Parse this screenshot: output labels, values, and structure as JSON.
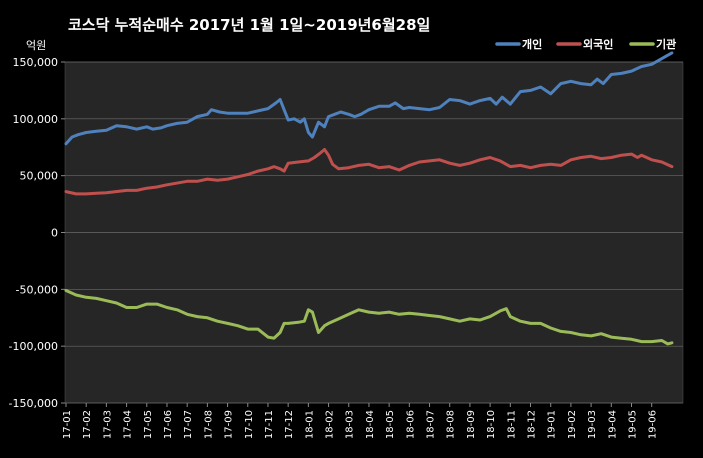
{
  "chart_data": {
    "type": "line",
    "title": "코스닥  누적순매수 2017년 1월 1일~2019년6월28일",
    "ylabel": "억원",
    "xlabel": "",
    "ylim": [
      -150000,
      150000
    ],
    "yticks": [
      150000,
      100000,
      50000,
      0,
      -50000,
      -100000,
      -150000
    ],
    "ytick_labels": [
      "150,000",
      "100,000",
      "50,000",
      "0",
      "-50,000",
      "-100,000",
      "-150,000"
    ],
    "categories": [
      "17-01",
      "17-02",
      "17-03",
      "17-04",
      "17-05",
      "17-06",
      "17-07",
      "17-08",
      "17-09",
      "17-10",
      "17-11",
      "17-12",
      "18-01",
      "18-02",
      "18-03",
      "18-04",
      "18-05",
      "18-06",
      "18-07",
      "18-08",
      "18-09",
      "18-10",
      "18-11",
      "18-12",
      "19-01",
      "19-02",
      "19-03",
      "19-04",
      "19-05",
      "19-06"
    ],
    "grid": "horizontal",
    "legend_position": "top-right",
    "series": [
      {
        "name": "개인",
        "color": "#4f81bd",
        "points": [
          [
            0,
            78000
          ],
          [
            0.3,
            84000
          ],
          [
            0.6,
            86000
          ],
          [
            1,
            88000
          ],
          [
            1.5,
            89000
          ],
          [
            2,
            90000
          ],
          [
            2.5,
            94000
          ],
          [
            3,
            93000
          ],
          [
            3.5,
            91000
          ],
          [
            4,
            93000
          ],
          [
            4.3,
            91000
          ],
          [
            4.7,
            92000
          ],
          [
            5,
            94000
          ],
          [
            5.5,
            96000
          ],
          [
            6,
            97000
          ],
          [
            6.5,
            102000
          ],
          [
            7,
            104000
          ],
          [
            7.2,
            108000
          ],
          [
            7.6,
            106000
          ],
          [
            8,
            105000
          ],
          [
            8.5,
            105000
          ],
          [
            9,
            105000
          ],
          [
            9.5,
            107000
          ],
          [
            10,
            109000
          ],
          [
            10.4,
            114000
          ],
          [
            10.6,
            117000
          ],
          [
            10.8,
            108000
          ],
          [
            11,
            99000
          ],
          [
            11.3,
            100000
          ],
          [
            11.6,
            97000
          ],
          [
            11.8,
            100000
          ],
          [
            12,
            88000
          ],
          [
            12.2,
            84000
          ],
          [
            12.5,
            97000
          ],
          [
            12.8,
            93000
          ],
          [
            13,
            102000
          ],
          [
            13.3,
            104000
          ],
          [
            13.6,
            106000
          ],
          [
            14,
            104000
          ],
          [
            14.3,
            102000
          ],
          [
            14.6,
            104000
          ],
          [
            15,
            108000
          ],
          [
            15.5,
            111000
          ],
          [
            16,
            111000
          ],
          [
            16.3,
            114000
          ],
          [
            16.7,
            109000
          ],
          [
            17,
            110000
          ],
          [
            17.5,
            109000
          ],
          [
            18,
            108000
          ],
          [
            18.5,
            110000
          ],
          [
            19,
            117000
          ],
          [
            19.5,
            116000
          ],
          [
            20,
            113000
          ],
          [
            20.5,
            116000
          ],
          [
            21,
            118000
          ],
          [
            21.3,
            113000
          ],
          [
            21.6,
            119000
          ],
          [
            22,
            113000
          ],
          [
            22.5,
            124000
          ],
          [
            23,
            125000
          ],
          [
            23.5,
            128000
          ],
          [
            24,
            122000
          ],
          [
            24.5,
            131000
          ],
          [
            25,
            133000
          ],
          [
            25.5,
            131000
          ],
          [
            26,
            130000
          ],
          [
            26.3,
            135000
          ],
          [
            26.6,
            131000
          ],
          [
            27,
            139000
          ],
          [
            27.5,
            140000
          ],
          [
            28,
            142000
          ],
          [
            28.5,
            146000
          ],
          [
            29,
            148000
          ],
          [
            29.3,
            151000
          ],
          [
            29.7,
            155000
          ],
          [
            30,
            158000
          ]
        ]
      },
      {
        "name": "외국인",
        "color": "#c0504d",
        "points": [
          [
            0,
            36000
          ],
          [
            0.5,
            34000
          ],
          [
            1,
            34000
          ],
          [
            1.5,
            34500
          ],
          [
            2,
            35000
          ],
          [
            3,
            37000
          ],
          [
            3.5,
            37000
          ],
          [
            4,
            39000
          ],
          [
            4.5,
            40000
          ],
          [
            5,
            42000
          ],
          [
            6,
            45000
          ],
          [
            6.5,
            45000
          ],
          [
            7,
            47000
          ],
          [
            7.5,
            46000
          ],
          [
            8,
            47000
          ],
          [
            8.5,
            49000
          ],
          [
            9,
            51000
          ],
          [
            9.5,
            54000
          ],
          [
            10,
            56000
          ],
          [
            10.3,
            58000
          ],
          [
            10.6,
            56000
          ],
          [
            10.8,
            54000
          ],
          [
            11,
            61000
          ],
          [
            11.5,
            62000
          ],
          [
            12,
            63000
          ],
          [
            12.3,
            66000
          ],
          [
            12.6,
            70000
          ],
          [
            12.8,
            73000
          ],
          [
            13,
            68000
          ],
          [
            13.2,
            60000
          ],
          [
            13.5,
            56000
          ],
          [
            14,
            57000
          ],
          [
            14.5,
            59000
          ],
          [
            15,
            60000
          ],
          [
            15.5,
            57000
          ],
          [
            16,
            58000
          ],
          [
            16.5,
            55000
          ],
          [
            17,
            59000
          ],
          [
            17.5,
            62000
          ],
          [
            18,
            63000
          ],
          [
            18.5,
            64000
          ],
          [
            19,
            61000
          ],
          [
            19.5,
            59000
          ],
          [
            20,
            61000
          ],
          [
            20.5,
            64000
          ],
          [
            21,
            66000
          ],
          [
            21.5,
            63000
          ],
          [
            22,
            58000
          ],
          [
            22.5,
            59000
          ],
          [
            23,
            57000
          ],
          [
            23.5,
            59000
          ],
          [
            24,
            60000
          ],
          [
            24.5,
            59000
          ],
          [
            25,
            64000
          ],
          [
            25.5,
            66000
          ],
          [
            26,
            67000
          ],
          [
            26.5,
            65000
          ],
          [
            27,
            66000
          ],
          [
            27.5,
            68000
          ],
          [
            28,
            69000
          ],
          [
            28.3,
            66000
          ],
          [
            28.5,
            68000
          ],
          [
            29,
            64000
          ],
          [
            29.5,
            62000
          ],
          [
            30,
            58000
          ]
        ]
      },
      {
        "name": "기관",
        "color": "#9bbb59",
        "points": [
          [
            0,
            -51000
          ],
          [
            0.5,
            -55000
          ],
          [
            1,
            -57000
          ],
          [
            1.5,
            -58000
          ],
          [
            2,
            -60000
          ],
          [
            2.5,
            -62000
          ],
          [
            3,
            -66000
          ],
          [
            3.5,
            -66000
          ],
          [
            4,
            -63000
          ],
          [
            4.5,
            -63000
          ],
          [
            5,
            -66000
          ],
          [
            5.5,
            -68000
          ],
          [
            6,
            -72000
          ],
          [
            6.5,
            -74000
          ],
          [
            7,
            -75000
          ],
          [
            7.5,
            -78000
          ],
          [
            8,
            -80000
          ],
          [
            8.5,
            -82000
          ],
          [
            9,
            -85000
          ],
          [
            9.5,
            -85000
          ],
          [
            10,
            -92000
          ],
          [
            10.3,
            -93000
          ],
          [
            10.6,
            -88000
          ],
          [
            10.8,
            -80000
          ],
          [
            11,
            -80000
          ],
          [
            11.5,
            -79000
          ],
          [
            11.8,
            -78000
          ],
          [
            12,
            -68000
          ],
          [
            12.2,
            -70000
          ],
          [
            12.5,
            -88000
          ],
          [
            12.8,
            -82000
          ],
          [
            13,
            -80000
          ],
          [
            13.5,
            -76000
          ],
          [
            14,
            -72000
          ],
          [
            14.5,
            -68000
          ],
          [
            15,
            -70000
          ],
          [
            15.5,
            -71000
          ],
          [
            16,
            -70000
          ],
          [
            16.5,
            -72000
          ],
          [
            17,
            -71000
          ],
          [
            17.5,
            -72000
          ],
          [
            18,
            -73000
          ],
          [
            18.5,
            -74000
          ],
          [
            19,
            -76000
          ],
          [
            19.5,
            -78000
          ],
          [
            20,
            -76000
          ],
          [
            20.5,
            -77000
          ],
          [
            21,
            -74000
          ],
          [
            21.5,
            -69000
          ],
          [
            21.8,
            -67000
          ],
          [
            22,
            -74000
          ],
          [
            22.5,
            -78000
          ],
          [
            23,
            -80000
          ],
          [
            23.5,
            -80000
          ],
          [
            24,
            -84000
          ],
          [
            24.5,
            -87000
          ],
          [
            25,
            -88000
          ],
          [
            25.5,
            -90000
          ],
          [
            26,
            -91000
          ],
          [
            26.5,
            -89000
          ],
          [
            27,
            -92000
          ],
          [
            27.5,
            -93000
          ],
          [
            28,
            -94000
          ],
          [
            28.5,
            -96000
          ],
          [
            29,
            -96000
          ],
          [
            29.5,
            -95000
          ],
          [
            29.8,
            -98000
          ],
          [
            30,
            -97000
          ]
        ]
      }
    ]
  }
}
